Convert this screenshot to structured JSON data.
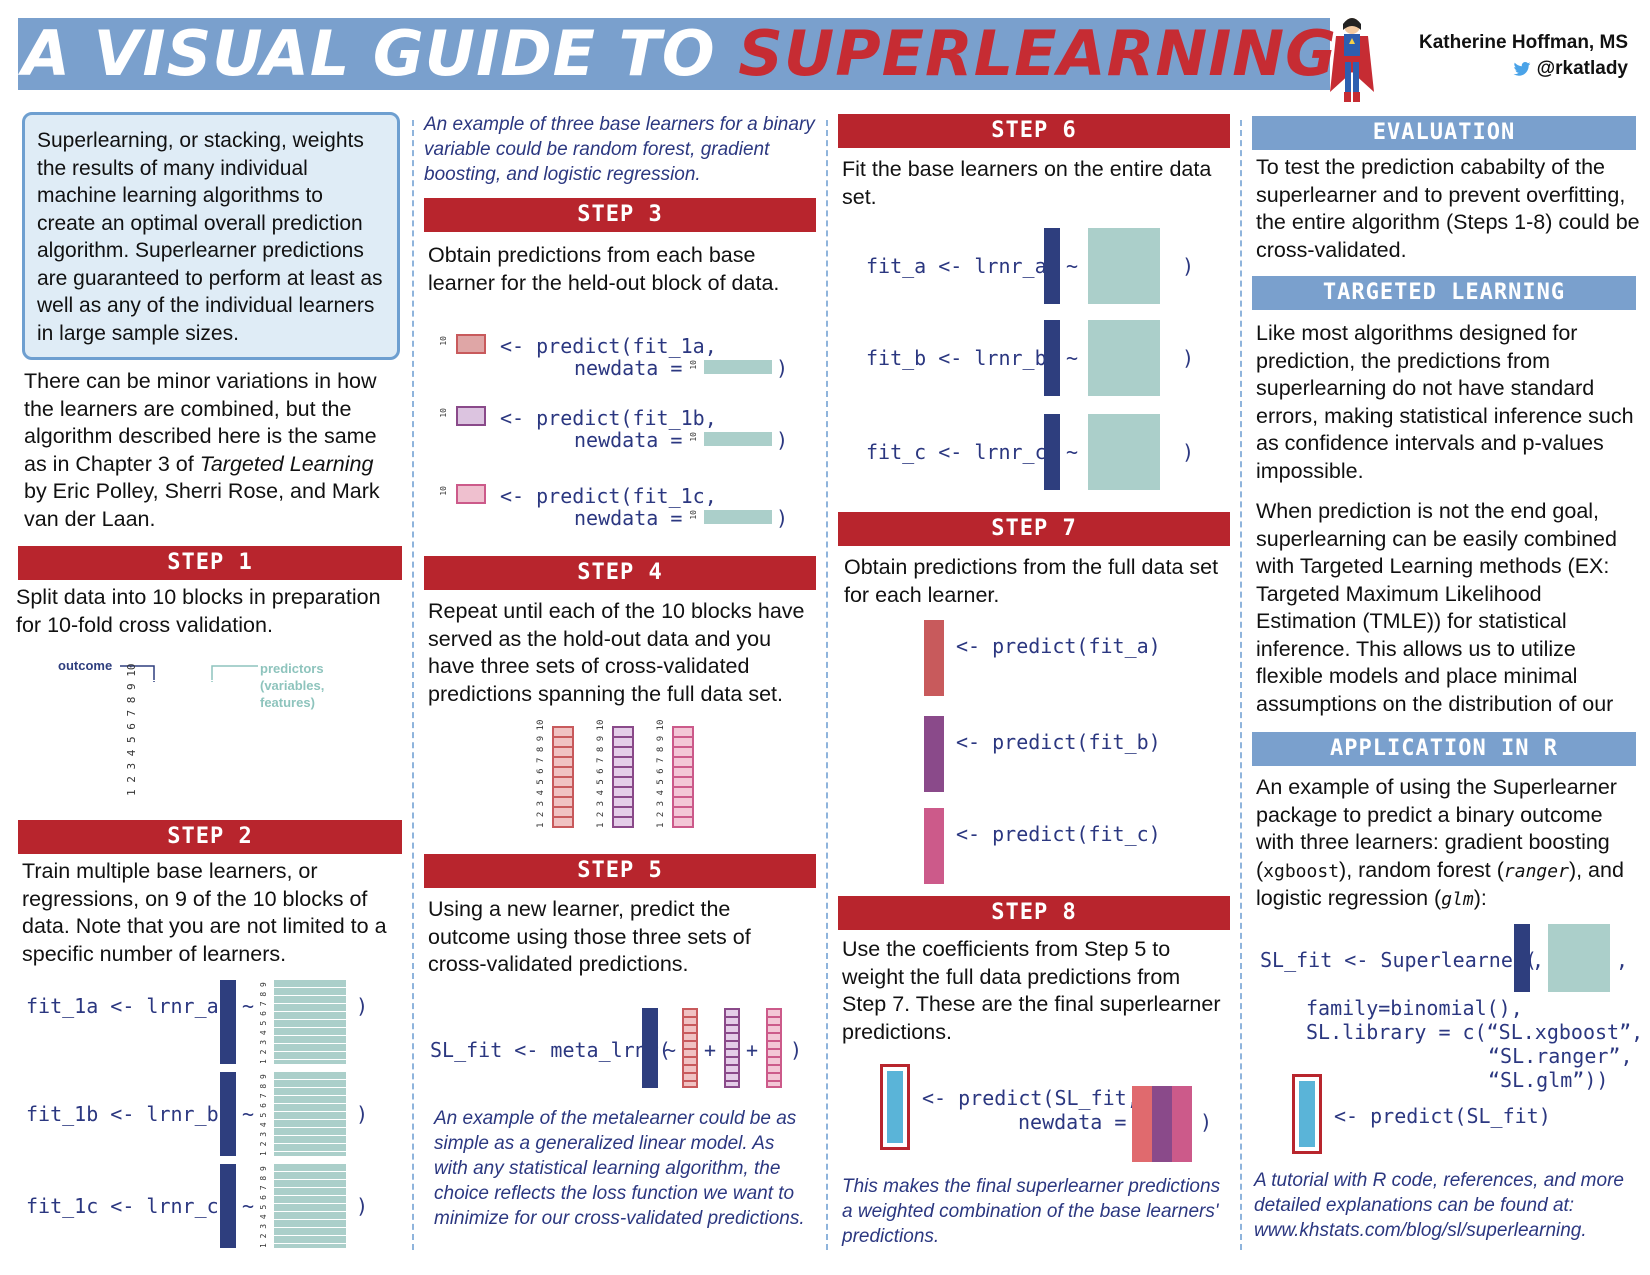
{
  "header": {
    "title_part1": "A VISUAL GUIDE TO ",
    "title_part2": "SUPERLEARNING",
    "author": "Katherine Hoffman, MS",
    "handle": "@rkatlady"
  },
  "colors": {
    "red": "#b8252d",
    "blue_header": "#7aa0cd",
    "navy": "#2e3e7e",
    "teal": "#abcfca",
    "pred_a": "#c85a5c",
    "pred_b": "#8a4a8a",
    "pred_c": "#cc5a8a"
  },
  "col1": {
    "intro": "Superlearning, or stacking, weights the results of many individual machine learning algorithms to create an optimal overall prediction algorithm. Superlearner predictions are guaranteed to perform at least as well as any of the individual learners in large sample sizes.",
    "variation_pre": "There can be minor variations in how the learners are combined, but the algorithm described here is the same as in Chapter 3 of ",
    "variation_book": "Targeted Learning",
    "variation_post": " by Eric Polley, Sherri Rose, and Mark van der Laan.",
    "step1_title": "STEP 1",
    "step1_text": "Split data into 10 blocks in preparation for 10-fold cross validation.",
    "outcome_label": "outcome",
    "predictors_label": "predictors (variables, features)",
    "fold_numbers": "1 2 3 4 5 6 7 8 9 10",
    "step2_title": "STEP 2",
    "step2_text": "Train multiple base learners, or regressions, on 9 of the 10 blocks of data. Note that you are not limited to a specific number of learners.",
    "train_numbers": "1 2 3 4 5 6 7 8 9",
    "code_fit1a": "fit_1a <- lrnr_a(",
    "code_fit1b": "fit_1b <- lrnr_b(",
    "code_fit1c": "fit_1c <- lrnr_c(",
    "tilde": "~",
    "close_paren": ")"
  },
  "col2": {
    "example_note": "An example of three base learners for a binary variable could be random forest, gradient boosting, and logistic regression.",
    "step3_title": "STEP 3",
    "step3_text": "Obtain predictions from each base learner for the held-out block of data.",
    "pred_1a_l1": "<- predict(fit_1a,",
    "pred_1b_l1": "<- predict(fit_1b,",
    "pred_1c_l1": "<- predict(fit_1c,",
    "pred_l2": "newdata = ",
    "ten": "10",
    "step4_title": "STEP 4",
    "step4_text": "Repeat until each of the 10 blocks have served as the hold-out data and you have three sets of cross-validated predictions spanning the full data set.",
    "step5_title": "STEP 5",
    "step5_text": "Using a new learner, predict the outcome using those three sets of cross-validated predictions.",
    "code_meta": "SL_fit <- meta_lrnr(",
    "plus": "+",
    "meta_note": "An example of the metalearner could be as simple as a generalized linear model. As with any statistical learning algorithm, the choice reflects the loss function we want to minimize  for our cross-validated predictions."
  },
  "col3": {
    "step6_title": "STEP 6",
    "step6_text": "Fit the base learners on the entire data set.",
    "code_fit_a": "fit_a <- lrnr_a(",
    "code_fit_b": "fit_b <- lrnr_b(",
    "code_fit_c": "fit_c <- lrnr_c(",
    "step7_title": "STEP 7",
    "step7_text": "Obtain predictions from the full data set for each learner.",
    "pred_a": "<- predict(fit_a)",
    "pred_b": "<- predict(fit_b)",
    "pred_c": "<- predict(fit_c)",
    "step8_title": "STEP 8",
    "step8_text": "Use the coefficients from Step 5 to weight the full data predictions from Step 7. These are the final superlearner predictions.",
    "pred_sl_l1": "<- predict(SL_fit,",
    "pred_sl_l2": "newdata = ",
    "final_note": "This makes the final superlearner predictions a weighted combination of the base learners' predictions."
  },
  "col4": {
    "eval_title": "EVALUATION",
    "eval_text": "To test the prediction cababilty of the superlearner and to prevent overfitting, the entire algorithm (Steps 1-8) could be cross-validated.",
    "tl_title": "TARGETED LEARNING",
    "tl_text1": "Like most algorithms designed for prediction, the predictions from superlearning do not have standard errors, making statistical inference such as confidence intervals and p-values impossible.",
    "tl_text2": "When prediction is not the end goal, superlearning can be easily combined with Targeted Learning methods (EX: Targeted Maximum Likelihood Estimation (TMLE)) for statistical inference.  This allows us to utilize flexible models and place minimal assumptions on the distribution of our",
    "app_title": "APPLICATION IN R",
    "app_text_pre": "An example of using the Superlearner package to predict a binary outcome with three learners: gradient boosting (",
    "app_xgb": "xgboost",
    "app_mid1": "), random forest (",
    "app_ranger": "ranger",
    "app_mid2": "), and logistic regression (",
    "app_glm": "glm",
    "app_end": "):",
    "code_sl": "SL_fit <- Superlearner(",
    "code_comma": ",",
    "code_family": "family=binomial(),",
    "code_lib1": "SL.library = c(“SL.xgboost”,",
    "code_lib2": "“SL.ranger”,",
    "code_lib3": "“SL.glm”))",
    "code_pred": "<- predict(SL_fit)",
    "tutorial": "A tutorial with R code, references, and more detailed explanations can be found at: www.khstats.com/blog/sl/superlearning."
  }
}
